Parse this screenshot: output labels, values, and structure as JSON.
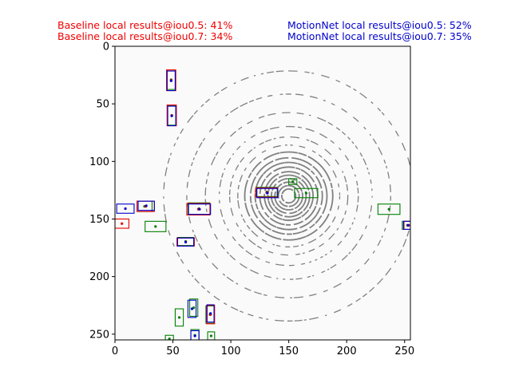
{
  "captions": {
    "baseline": {
      "color": "#ee0000",
      "line1": "Baseline local results@iou0.5: 41%",
      "line2": "Baseline local results@iou0.7: 34%"
    },
    "motionnet": {
      "color": "#0000cc",
      "line1": "MotionNet local results@iou0.5: 52%",
      "line2": "MotionNet local results@iou0.7: 35%"
    }
  },
  "chart_data": {
    "type": "image-with-boxes",
    "xlim": [
      0,
      255
    ],
    "ylim": [
      255,
      0
    ],
    "y_inverted": true,
    "xticks": [
      0,
      50,
      100,
      150,
      200,
      250
    ],
    "yticks": [
      0,
      50,
      100,
      150,
      200,
      250
    ],
    "background_color": "#fafafa",
    "point_color": "#808080",
    "lidar_rings": {
      "center": [
        150,
        130
      ],
      "radii": [
        6,
        9,
        12,
        15,
        18,
        21,
        25,
        29,
        33,
        38,
        44,
        51,
        60,
        72,
        88,
        108
      ]
    },
    "series_colors": {
      "ground_truth": "#008000",
      "baseline": "#ee0000",
      "motionnet": "#0000cc"
    },
    "boxes": {
      "ground_truth": [
        {
          "cx": 48.5,
          "cy": 29,
          "w": 7,
          "h": 17
        },
        {
          "cx": 49,
          "cy": 60,
          "w": 7,
          "h": 17
        },
        {
          "cx": 25.5,
          "cy": 139,
          "w": 13,
          "h": 9
        },
        {
          "cx": 35,
          "cy": 156.5,
          "w": 18,
          "h": 9
        },
        {
          "cx": 61,
          "cy": 169.5,
          "w": 14,
          "h": 7
        },
        {
          "cx": 72.5,
          "cy": 141,
          "w": 19,
          "h": 10
        },
        {
          "cx": 131,
          "cy": 126.5,
          "w": 18,
          "h": 8
        },
        {
          "cx": 153.5,
          "cy": 117.5,
          "w": 7,
          "h": 5
        },
        {
          "cx": 165,
          "cy": 127.5,
          "w": 20,
          "h": 8
        },
        {
          "cx": 236.5,
          "cy": 141.5,
          "w": 19,
          "h": 9
        },
        {
          "cx": 252.5,
          "cy": 155.5,
          "w": 9,
          "h": 7
        },
        {
          "cx": 55.5,
          "cy": 235.5,
          "w": 7,
          "h": 15
        },
        {
          "cx": 68,
          "cy": 227,
          "w": 7,
          "h": 15
        },
        {
          "cx": 82,
          "cy": 233,
          "w": 7,
          "h": 15
        },
        {
          "cx": 47,
          "cy": 254,
          "w": 7,
          "h": 6
        },
        {
          "cx": 69,
          "cy": 251,
          "w": 7,
          "h": 10
        },
        {
          "cx": 83,
          "cy": 251.5,
          "w": 6,
          "h": 7
        }
      ],
      "baseline": [
        {
          "cx": 48.5,
          "cy": 29.5,
          "w": 8,
          "h": 18
        },
        {
          "cx": 49,
          "cy": 60,
          "w": 8,
          "h": 18
        },
        {
          "cx": 26.5,
          "cy": 139,
          "w": 15,
          "h": 9
        },
        {
          "cx": 6,
          "cy": 154,
          "w": 12,
          "h": 8
        },
        {
          "cx": 61,
          "cy": 170,
          "w": 15,
          "h": 7
        },
        {
          "cx": 72,
          "cy": 141.5,
          "w": 20,
          "h": 10
        },
        {
          "cx": 131,
          "cy": 127,
          "w": 19,
          "h": 8
        },
        {
          "cx": 82.5,
          "cy": 233,
          "w": 7,
          "h": 16
        },
        {
          "cx": 253.5,
          "cy": 155.5,
          "w": 8,
          "h": 7
        }
      ],
      "motionnet": [
        {
          "cx": 48.5,
          "cy": 30,
          "w": 7,
          "h": 17
        },
        {
          "cx": 49,
          "cy": 60.5,
          "w": 7,
          "h": 17
        },
        {
          "cx": 27,
          "cy": 138.5,
          "w": 14,
          "h": 8
        },
        {
          "cx": 9,
          "cy": 141,
          "w": 15,
          "h": 8
        },
        {
          "cx": 61,
          "cy": 170,
          "w": 14,
          "h": 7
        },
        {
          "cx": 73,
          "cy": 141.5,
          "w": 19,
          "h": 9
        },
        {
          "cx": 131.5,
          "cy": 127.5,
          "w": 18,
          "h": 8
        },
        {
          "cx": 66.5,
          "cy": 228,
          "w": 7,
          "h": 15
        },
        {
          "cx": 82.5,
          "cy": 232,
          "w": 6,
          "h": 15
        },
        {
          "cx": 69,
          "cy": 251.5,
          "w": 7,
          "h": 9
        },
        {
          "cx": 253,
          "cy": 155.5,
          "w": 8,
          "h": 7
        }
      ]
    }
  }
}
